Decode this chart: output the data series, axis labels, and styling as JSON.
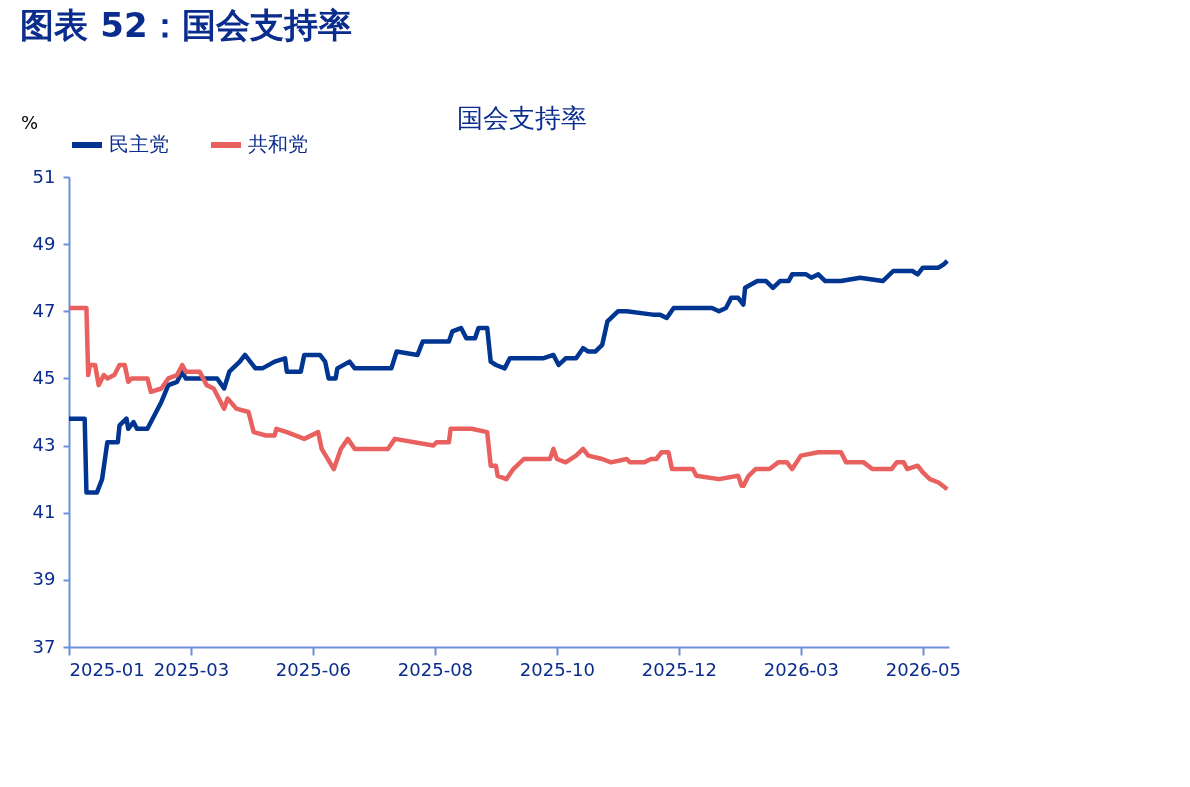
{
  "chart_data": {
    "type": "line",
    "title": "图表 52：国会支持率",
    "subtitle": "国会支持率",
    "ylabel": "%",
    "xlim": [
      "2025-01-13",
      "2026-06-02"
    ],
    "xticks": [
      {
        "value": "2025-01-13",
        "label": "2025-01"
      },
      {
        "value": "2025-03-24",
        "label": "2025-03"
      },
      {
        "value": "2025-06-02",
        "label": "2025-06"
      },
      {
        "value": "2025-08-11",
        "label": "2025-08"
      },
      {
        "value": "2025-10-20",
        "label": "2025-10"
      },
      {
        "value": "2025-12-29",
        "label": "2025-12"
      },
      {
        "value": "2026-03-09",
        "label": "2026-03"
      },
      {
        "value": "2026-05-18",
        "label": "2026-05"
      }
    ],
    "ylim": [
      37,
      51
    ],
    "yticks": [
      37,
      39,
      41,
      43,
      45,
      47,
      49,
      51
    ],
    "grid": false,
    "legend": "top",
    "series": [
      {
        "name": "民主党",
        "color": "#003591",
        "x": [
          "2025-01-13",
          "2025-01-22",
          "2025-01-23",
          "2025-01-29",
          "2025-02-01",
          "2025-02-04",
          "2025-02-10",
          "2025-02-11",
          "2025-02-15",
          "2025-02-16",
          "2025-02-19",
          "2025-02-21",
          "2025-02-27",
          "2025-03-04",
          "2025-03-07",
          "2025-03-11",
          "2025-03-16",
          "2025-03-19",
          "2025-03-21",
          "2025-04-08",
          "2025-04-12",
          "2025-04-15",
          "2025-04-21",
          "2025-04-24",
          "2025-04-30",
          "2025-05-04",
          "2025-05-11",
          "2025-05-17",
          "2025-05-18",
          "2025-05-26",
          "2025-05-28",
          "2025-06-06",
          "2025-06-09",
          "2025-06-11",
          "2025-06-15",
          "2025-06-16",
          "2025-06-23",
          "2025-06-26",
          "2025-07-17",
          "2025-07-20",
          "2025-08-01",
          "2025-08-04",
          "2025-08-19",
          "2025-08-21",
          "2025-08-26",
          "2025-08-29",
          "2025-09-03",
          "2025-09-05",
          "2025-09-10",
          "2025-09-12",
          "2025-09-15",
          "2025-09-20",
          "2025-09-23",
          "2025-10-01",
          "2025-10-12",
          "2025-10-18",
          "2025-10-21",
          "2025-10-25",
          "2025-10-31",
          "2025-11-04",
          "2025-11-07",
          "2025-11-11",
          "2025-11-15",
          "2025-11-18",
          "2025-11-24",
          "2025-11-29",
          "2025-12-14",
          "2025-12-18",
          "2025-12-22",
          "2025-12-26",
          "2026-01-17",
          "2026-01-21",
          "2026-01-25",
          "2026-01-28",
          "2026-02-01",
          "2026-02-04",
          "2026-02-05",
          "2026-02-12",
          "2026-02-17",
          "2026-02-21",
          "2026-02-25",
          "2026-03-02",
          "2026-03-04",
          "2026-03-12",
          "2026-03-15",
          "2026-03-19",
          "2026-03-23",
          "2026-04-01",
          "2026-04-12",
          "2026-04-25",
          "2026-05-01",
          "2026-05-12",
          "2026-05-15",
          "2026-05-18",
          "2026-05-27",
          "2026-05-30",
          "2026-06-01"
        ],
        "values": [
          43.8,
          43.8,
          41.6,
          41.6,
          42.0,
          43.1,
          43.1,
          43.6,
          43.8,
          43.5,
          43.7,
          43.5,
          43.5,
          44.0,
          44.3,
          44.8,
          44.9,
          45.2,
          45.0,
          45.0,
          44.7,
          45.2,
          45.5,
          45.7,
          45.3,
          45.3,
          45.5,
          45.6,
          45.2,
          45.2,
          45.7,
          45.7,
          45.5,
          45.0,
          45.0,
          45.3,
          45.5,
          45.3,
          45.3,
          45.8,
          45.7,
          46.1,
          46.1,
          46.4,
          46.5,
          46.2,
          46.2,
          46.5,
          46.5,
          45.5,
          45.4,
          45.3,
          45.6,
          45.6,
          45.6,
          45.7,
          45.4,
          45.6,
          45.6,
          45.9,
          45.8,
          45.8,
          46.0,
          46.7,
          47.0,
          47.0,
          46.9,
          46.9,
          46.8,
          47.1,
          47.1,
          47.0,
          47.1,
          47.4,
          47.4,
          47.2,
          47.7,
          47.9,
          47.9,
          47.7,
          47.9,
          47.9,
          48.1,
          48.1,
          48.0,
          48.1,
          47.9,
          47.9,
          48.0,
          47.9,
          48.2,
          48.2,
          48.1,
          48.3,
          48.3,
          48.4,
          48.5
        ]
      },
      {
        "name": "共和党",
        "color": "#e8615f",
        "x": [
          "2025-01-13",
          "2025-01-23",
          "2025-01-24",
          "2025-01-25",
          "2025-01-28",
          "2025-01-30",
          "2025-02-02",
          "2025-02-04",
          "2025-02-08",
          "2025-02-11",
          "2025-02-14",
          "2025-02-16",
          "2025-02-18",
          "2025-02-27",
          "2025-03-01",
          "2025-03-07",
          "2025-03-11",
          "2025-03-16",
          "2025-03-19",
          "2025-03-21",
          "2025-03-29",
          "2025-04-02",
          "2025-04-06",
          "2025-04-09",
          "2025-04-12",
          "2025-04-14",
          "2025-04-19",
          "2025-04-26",
          "2025-04-29",
          "2025-05-06",
          "2025-05-11",
          "2025-05-12",
          "2025-05-18",
          "2025-05-28",
          "2025-06-05",
          "2025-06-07",
          "2025-06-14",
          "2025-06-18",
          "2025-06-22",
          "2025-06-26",
          "2025-07-15",
          "2025-07-19",
          "2025-08-10",
          "2025-08-12",
          "2025-08-19",
          "2025-08-20",
          "2025-09-01",
          "2025-09-10",
          "2025-09-12",
          "2025-09-15",
          "2025-09-16",
          "2025-09-21",
          "2025-09-25",
          "2025-10-01",
          "2025-10-16",
          "2025-10-18",
          "2025-10-20",
          "2025-10-25",
          "2025-10-31",
          "2025-11-04",
          "2025-11-07",
          "2025-11-15",
          "2025-11-20",
          "2025-11-29",
          "2025-12-01",
          "2025-12-09",
          "2025-12-13",
          "2025-12-16",
          "2025-12-19",
          "2025-12-23",
          "2025-12-25",
          "2026-01-06",
          "2026-01-08",
          "2026-01-21",
          "2026-02-01",
          "2026-02-03",
          "2026-02-04",
          "2026-02-07",
          "2026-02-11",
          "2026-02-19",
          "2026-02-24",
          "2026-03-01",
          "2026-03-04",
          "2026-03-09",
          "2026-03-19",
          "2026-04-01",
          "2026-04-04",
          "2026-04-14",
          "2026-04-19",
          "2026-04-30",
          "2026-05-03",
          "2026-05-07",
          "2026-05-09",
          "2026-05-15",
          "2026-05-18",
          "2026-05-22",
          "2026-05-27",
          "2026-06-01"
        ],
        "values": [
          47.1,
          47.1,
          45.1,
          45.4,
          45.4,
          44.8,
          45.1,
          45.0,
          45.1,
          45.4,
          45.4,
          44.9,
          45.0,
          45.0,
          44.6,
          44.7,
          45.0,
          45.1,
          45.4,
          45.2,
          45.2,
          44.8,
          44.7,
          44.4,
          44.1,
          44.4,
          44.1,
          44.0,
          43.4,
          43.3,
          43.3,
          43.5,
          43.4,
          43.2,
          43.4,
          42.9,
          42.3,
          42.9,
          43.2,
          42.9,
          42.9,
          43.2,
          43.0,
          43.1,
          43.1,
          43.5,
          43.5,
          43.4,
          42.4,
          42.4,
          42.1,
          42.0,
          42.3,
          42.6,
          42.6,
          42.9,
          42.6,
          42.5,
          42.7,
          42.9,
          42.7,
          42.6,
          42.5,
          42.6,
          42.5,
          42.5,
          42.6,
          42.6,
          42.8,
          42.8,
          42.3,
          42.3,
          42.1,
          42.0,
          42.1,
          41.8,
          41.8,
          42.1,
          42.3,
          42.3,
          42.5,
          42.5,
          42.3,
          42.7,
          42.8,
          42.8,
          42.5,
          42.5,
          42.3,
          42.3,
          42.5,
          42.5,
          42.3,
          42.4,
          42.2,
          42.0,
          41.9,
          41.7
        ]
      }
    ]
  }
}
